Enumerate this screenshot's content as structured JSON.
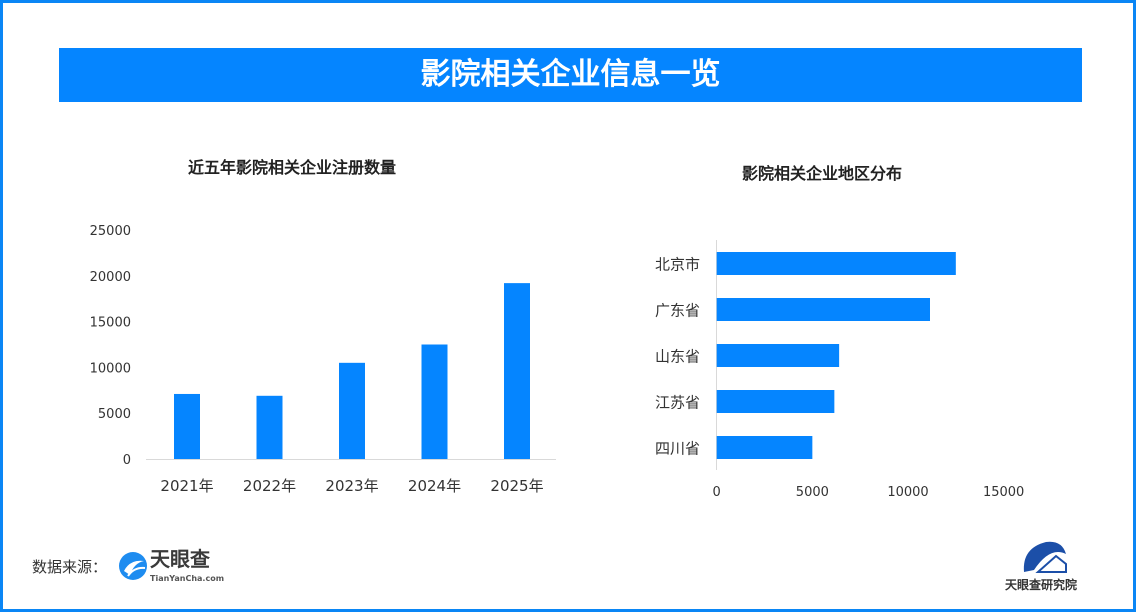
{
  "header": {
    "title": "影院相关企业信息一览"
  },
  "chart_data": [
    {
      "type": "bar",
      "title": "近五年影院相关企业注册数量",
      "categories": [
        "2021年",
        "2022年",
        "2023年",
        "2024年",
        "2025年"
      ],
      "values": [
        7100,
        6900,
        10500,
        12500,
        19200
      ],
      "ylim": [
        0,
        25000
      ],
      "yticks": [
        "0",
        "5000",
        "10000",
        "15000",
        "20000",
        "25000"
      ],
      "grid": false,
      "color": "#0585ff"
    },
    {
      "type": "bar",
      "orientation": "horizontal",
      "title": "影院相关企业地区分布",
      "categories": [
        "北京市",
        "广东省",
        "山东省",
        "江苏省",
        "四川省"
      ],
      "values": [
        12500,
        11150,
        6400,
        6150,
        5000
      ],
      "xlim": [
        0,
        17500
      ],
      "xticks": [
        "0",
        "5000",
        "10000",
        "15000"
      ],
      "grid": false,
      "color": "#0585ff"
    }
  ],
  "footer": {
    "source_label": "数据来源：",
    "source_brand": "天眼查",
    "source_url": "TianYanCha.com",
    "institute": "天眼查研究院"
  }
}
